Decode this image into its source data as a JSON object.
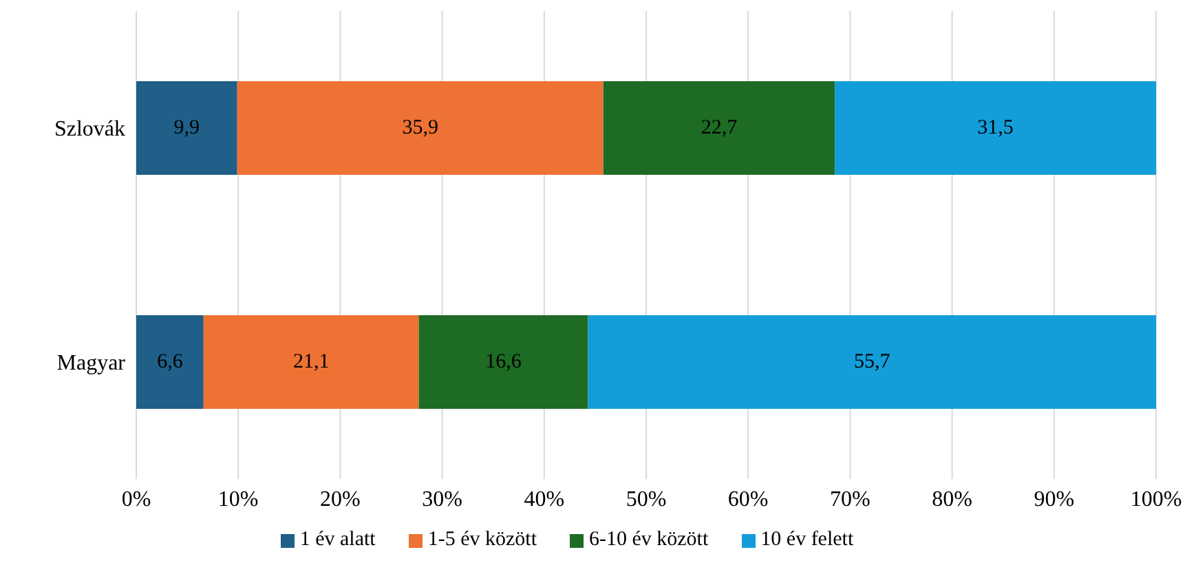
{
  "chart_data": {
    "type": "bar",
    "orientation": "horizontal",
    "stacked": true,
    "categories": [
      "Szlovák",
      "Magyar"
    ],
    "series": [
      {
        "name": "1 év alatt",
        "color": "#1f5f88",
        "values": [
          9.9,
          6.6
        ],
        "value_labels": [
          "9,9",
          "6,6"
        ]
      },
      {
        "name": "1-5 év között",
        "color": "#ed7233",
        "values": [
          35.9,
          21.1
        ],
        "value_labels": [
          "35,9",
          "21,1"
        ]
      },
      {
        "name": "6-10 év között",
        "color": "#1e6b24",
        "values": [
          22.7,
          16.6
        ],
        "value_labels": [
          "22,7",
          "16,6"
        ]
      },
      {
        "name": "10 év felett",
        "color": "#139dd9",
        "values": [
          31.5,
          55.7
        ],
        "value_labels": [
          "31,5",
          "55,7"
        ]
      }
    ],
    "xlim": [
      0,
      100
    ],
    "xticks": [
      {
        "value": 0,
        "label": "0%"
      },
      {
        "value": 10,
        "label": "10%"
      },
      {
        "value": 20,
        "label": "20%"
      },
      {
        "value": 30,
        "label": "30%"
      },
      {
        "value": 40,
        "label": "40%"
      },
      {
        "value": 50,
        "label": "50%"
      },
      {
        "value": 60,
        "label": "60%"
      },
      {
        "value": 70,
        "label": "70%"
      },
      {
        "value": 80,
        "label": "80%"
      },
      {
        "value": 90,
        "label": "90%"
      },
      {
        "value": 100,
        "label": "100%"
      }
    ],
    "grid": "x",
    "legend": "bottom"
  }
}
